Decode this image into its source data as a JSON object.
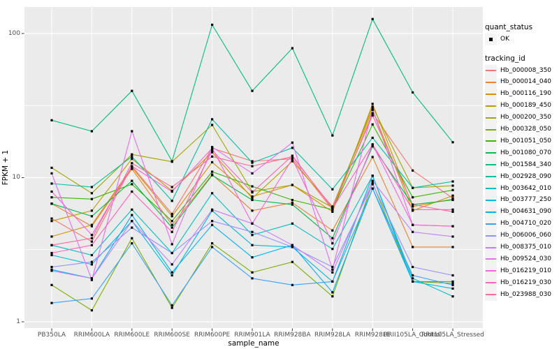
{
  "style": {
    "panel_bg": "#EBEBEB",
    "grid_color": "#FFFFFF",
    "legend_key_bg": "#F2F2F2",
    "tick_text_color": "#4D4D4D",
    "point_color": "#000000"
  },
  "legend": {
    "quant_status": {
      "title": "quant_status",
      "items": [
        {
          "label": "OK",
          "marker": "black-point"
        }
      ]
    },
    "tracking_id": {
      "title": "tracking_id"
    }
  },
  "chart_data": {
    "type": "line",
    "title": "",
    "xlabel": "sample_name",
    "ylabel": "FPKM + 1",
    "y_scale": "log10",
    "ylim": [
      0.9,
      155
    ],
    "grid": true,
    "legend_position": "right",
    "point_shape": "square",
    "y_ticks": [
      {
        "value": 1,
        "label": "1"
      },
      {
        "value": 10,
        "label": "10"
      },
      {
        "value": 100,
        "label": "100"
      }
    ],
    "y_minor_ticks": [
      3.1623,
      31.623
    ],
    "categories": [
      "PB350LA",
      "RRIM600LA",
      "RRIM600LE",
      "RRIM600SE",
      "RRIM600PE",
      "RRIM901LA",
      "RRIM928BA",
      "RRIM928LA",
      "RRIM928LE",
      "RRII105LA_Control",
      "RRII105LA_Stressed"
    ],
    "series": [
      {
        "name": "Hb_000008_350",
        "color": "#F8766D",
        "values": [
          5.2,
          3.6,
          12.0,
          5.6,
          16.0,
          13.0,
          13.5,
          6.0,
          28.0,
          11.2,
          7.2
        ]
      },
      {
        "name": "Hb_000014_040",
        "color": "#EA8331",
        "values": [
          6.6,
          4.6,
          11.5,
          4.7,
          10.5,
          5.9,
          6.7,
          4.3,
          13.9,
          3.3,
          3.3
        ]
      },
      {
        "name": "Hb_000116_190",
        "color": "#D89000",
        "values": [
          3.9,
          4.7,
          11.8,
          5.4,
          12.8,
          7.4,
          8.9,
          5.8,
          32.5,
          6.3,
          7.1
        ]
      },
      {
        "name": "Hb_000189_450",
        "color": "#C09B00",
        "values": [
          5.0,
          5.9,
          13.5,
          8.1,
          15.0,
          7.2,
          13.0,
          6.3,
          29.5,
          5.9,
          7.5
        ]
      },
      {
        "name": "Hb_000200_350",
        "color": "#A3A500",
        "values": [
          11.7,
          7.8,
          14.5,
          12.9,
          23.2,
          8.0,
          8.9,
          6.2,
          31.0,
          8.5,
          8.8
        ]
      },
      {
        "name": "Hb_000328_050",
        "color": "#7CAE00",
        "values": [
          1.8,
          1.2,
          3.8,
          1.25,
          3.5,
          2.2,
          2.6,
          1.5,
          9.2,
          1.9,
          1.85
        ]
      },
      {
        "name": "Hb_001051_050",
        "color": "#39B600",
        "values": [
          7.3,
          7.1,
          9.0,
          5.0,
          11.0,
          8.7,
          7.0,
          6.0,
          23.4,
          7.3,
          8.2
        ]
      },
      {
        "name": "Hb_001080_070",
        "color": "#00BB4E",
        "values": [
          6.6,
          5.4,
          9.5,
          4.5,
          10.4,
          7.0,
          6.5,
          3.8,
          16.5,
          6.5,
          7.0
        ]
      },
      {
        "name": "Hb_001584_340",
        "color": "#00BF7D",
        "values": [
          25.0,
          21.0,
          40.0,
          13.0,
          115.0,
          40.0,
          79.0,
          19.6,
          126.0,
          39.0,
          17.6
        ]
      },
      {
        "name": "Hb_002928_090",
        "color": "#00C1A3",
        "values": [
          9.1,
          8.6,
          14.0,
          6.9,
          25.4,
          12.7,
          16.1,
          8.3,
          18.9,
          8.5,
          9.4
        ]
      },
      {
        "name": "Hb_003642_010",
        "color": "#00BFC4",
        "values": [
          3.4,
          2.9,
          6.0,
          3.0,
          7.8,
          4.0,
          4.8,
          3.2,
          10.3,
          2.0,
          1.5
        ]
      },
      {
        "name": "Hb_003777_250",
        "color": "#00BAE0",
        "values": [
          2.9,
          2.5,
          5.0,
          2.1,
          5.9,
          3.4,
          3.3,
          1.9,
          10.3,
          1.9,
          1.7
        ]
      },
      {
        "name": "Hb_004631_090",
        "color": "#00B0F6",
        "values": [
          2.3,
          2.0,
          5.5,
          2.2,
          4.7,
          2.8,
          3.4,
          1.6,
          8.4,
          1.9,
          1.9
        ]
      },
      {
        "name": "Hb_004710_020",
        "color": "#35A2FF",
        "values": [
          1.35,
          1.45,
          3.5,
          1.3,
          3.3,
          2.0,
          1.8,
          1.9,
          8.4,
          2.1,
          1.8
        ]
      },
      {
        "name": "Hb_006006_060",
        "color": "#9590FF",
        "values": [
          2.4,
          2.6,
          4.5,
          3.0,
          5.0,
          4.2,
          3.3,
          2.4,
          9.0,
          2.4,
          2.1
        ]
      },
      {
        "name": "Hb_008375_010",
        "color": "#C77CFF",
        "values": [
          2.26,
          2.0,
          5.0,
          2.5,
          6.0,
          4.8,
          3.4,
          2.2,
          9.5,
          4.2,
          3.9
        ]
      },
      {
        "name": "Hb_009524_030",
        "color": "#E76BF3",
        "values": [
          10.7,
          1.95,
          21.0,
          3.45,
          16.3,
          10.7,
          17.5,
          2.3,
          30.0,
          4.7,
          4.6
        ]
      },
      {
        "name": "Hb_016219_010",
        "color": "#FA62DB",
        "values": [
          8.0,
          4.0,
          12.0,
          8.0,
          16.0,
          4.8,
          13.5,
          3.5,
          17.0,
          4.7,
          4.6
        ]
      },
      {
        "name": "Hb_016219_030",
        "color": "#FF62BC",
        "values": [
          3.0,
          3.4,
          8.0,
          4.2,
          15.5,
          7.9,
          14.2,
          6.1,
          17.0,
          6.0,
          6.0
        ]
      },
      {
        "name": "Hb_023988_030",
        "color": "#FF6A98",
        "values": [
          3.4,
          3.8,
          12.6,
          8.6,
          14.0,
          12.0,
          14.0,
          6.2,
          27.0,
          6.5,
          5.8
        ]
      }
    ]
  }
}
